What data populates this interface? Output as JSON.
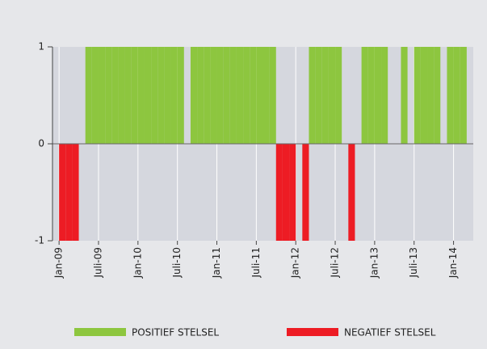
{
  "chart_data": {
    "type": "bar",
    "categories": [
      null,
      "Jan-09",
      null,
      null,
      null,
      null,
      null,
      "Juli-09",
      null,
      null,
      null,
      null,
      null,
      "Jan-10",
      null,
      null,
      null,
      null,
      null,
      "Juli-10",
      null,
      null,
      null,
      null,
      null,
      "Jan-11",
      null,
      null,
      null,
      null,
      null,
      "Juli-11",
      null,
      null,
      null,
      null,
      null,
      "Jan-12",
      null,
      null,
      null,
      null,
      null,
      "Juli-12",
      null,
      null,
      null,
      null,
      null,
      "Jan-13",
      null,
      null,
      null,
      null,
      null,
      "Juli-13",
      null,
      null,
      null,
      null,
      null,
      "Jan-14",
      null,
      null
    ],
    "series": [
      {
        "name": "POSITIEF STELSEL",
        "color": "#8dc63f",
        "values": [
          0,
          0,
          0,
          0,
          0,
          1,
          1,
          1,
          1,
          1,
          1,
          1,
          1,
          1,
          1,
          1,
          1,
          1,
          1,
          1,
          0,
          1,
          1,
          1,
          1,
          1,
          1,
          1,
          1,
          1,
          1,
          1,
          1,
          1,
          0,
          0,
          0,
          0,
          0,
          1,
          1,
          1,
          1,
          1,
          0,
          0,
          0,
          1,
          1,
          1,
          1,
          0,
          0,
          1,
          0,
          1,
          1,
          1,
          1,
          0,
          1,
          1,
          1,
          0
        ]
      },
      {
        "name": "NEGATIEF STELSEL",
        "color": "#ed1c24",
        "values": [
          0,
          -1,
          -1,
          -1,
          0,
          0,
          0,
          0,
          0,
          0,
          0,
          0,
          0,
          0,
          0,
          0,
          0,
          0,
          0,
          0,
          0,
          0,
          0,
          0,
          0,
          0,
          0,
          0,
          0,
          0,
          0,
          0,
          0,
          0,
          -1,
          -1,
          -1,
          0,
          -1,
          0,
          0,
          0,
          0,
          0,
          0,
          -1,
          0,
          0,
          0,
          0,
          0,
          0,
          0,
          0,
          0,
          0,
          0,
          0,
          0,
          0,
          0,
          0,
          0,
          0
        ]
      }
    ],
    "ylim": [
      -1,
      1
    ],
    "yticks": [
      -1,
      0,
      1
    ],
    "grid": true
  }
}
